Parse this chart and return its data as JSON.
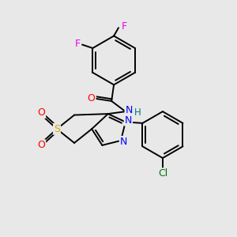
{
  "bg_color": "#e8e8e8",
  "bond_color": "#000000",
  "atom_colors": {
    "F": "#ee00ee",
    "O": "#ff0000",
    "N": "#0000ff",
    "S": "#ccaa00",
    "Cl": "#007700",
    "H": "#007777",
    "C": "#000000"
  },
  "lw": 1.4
}
